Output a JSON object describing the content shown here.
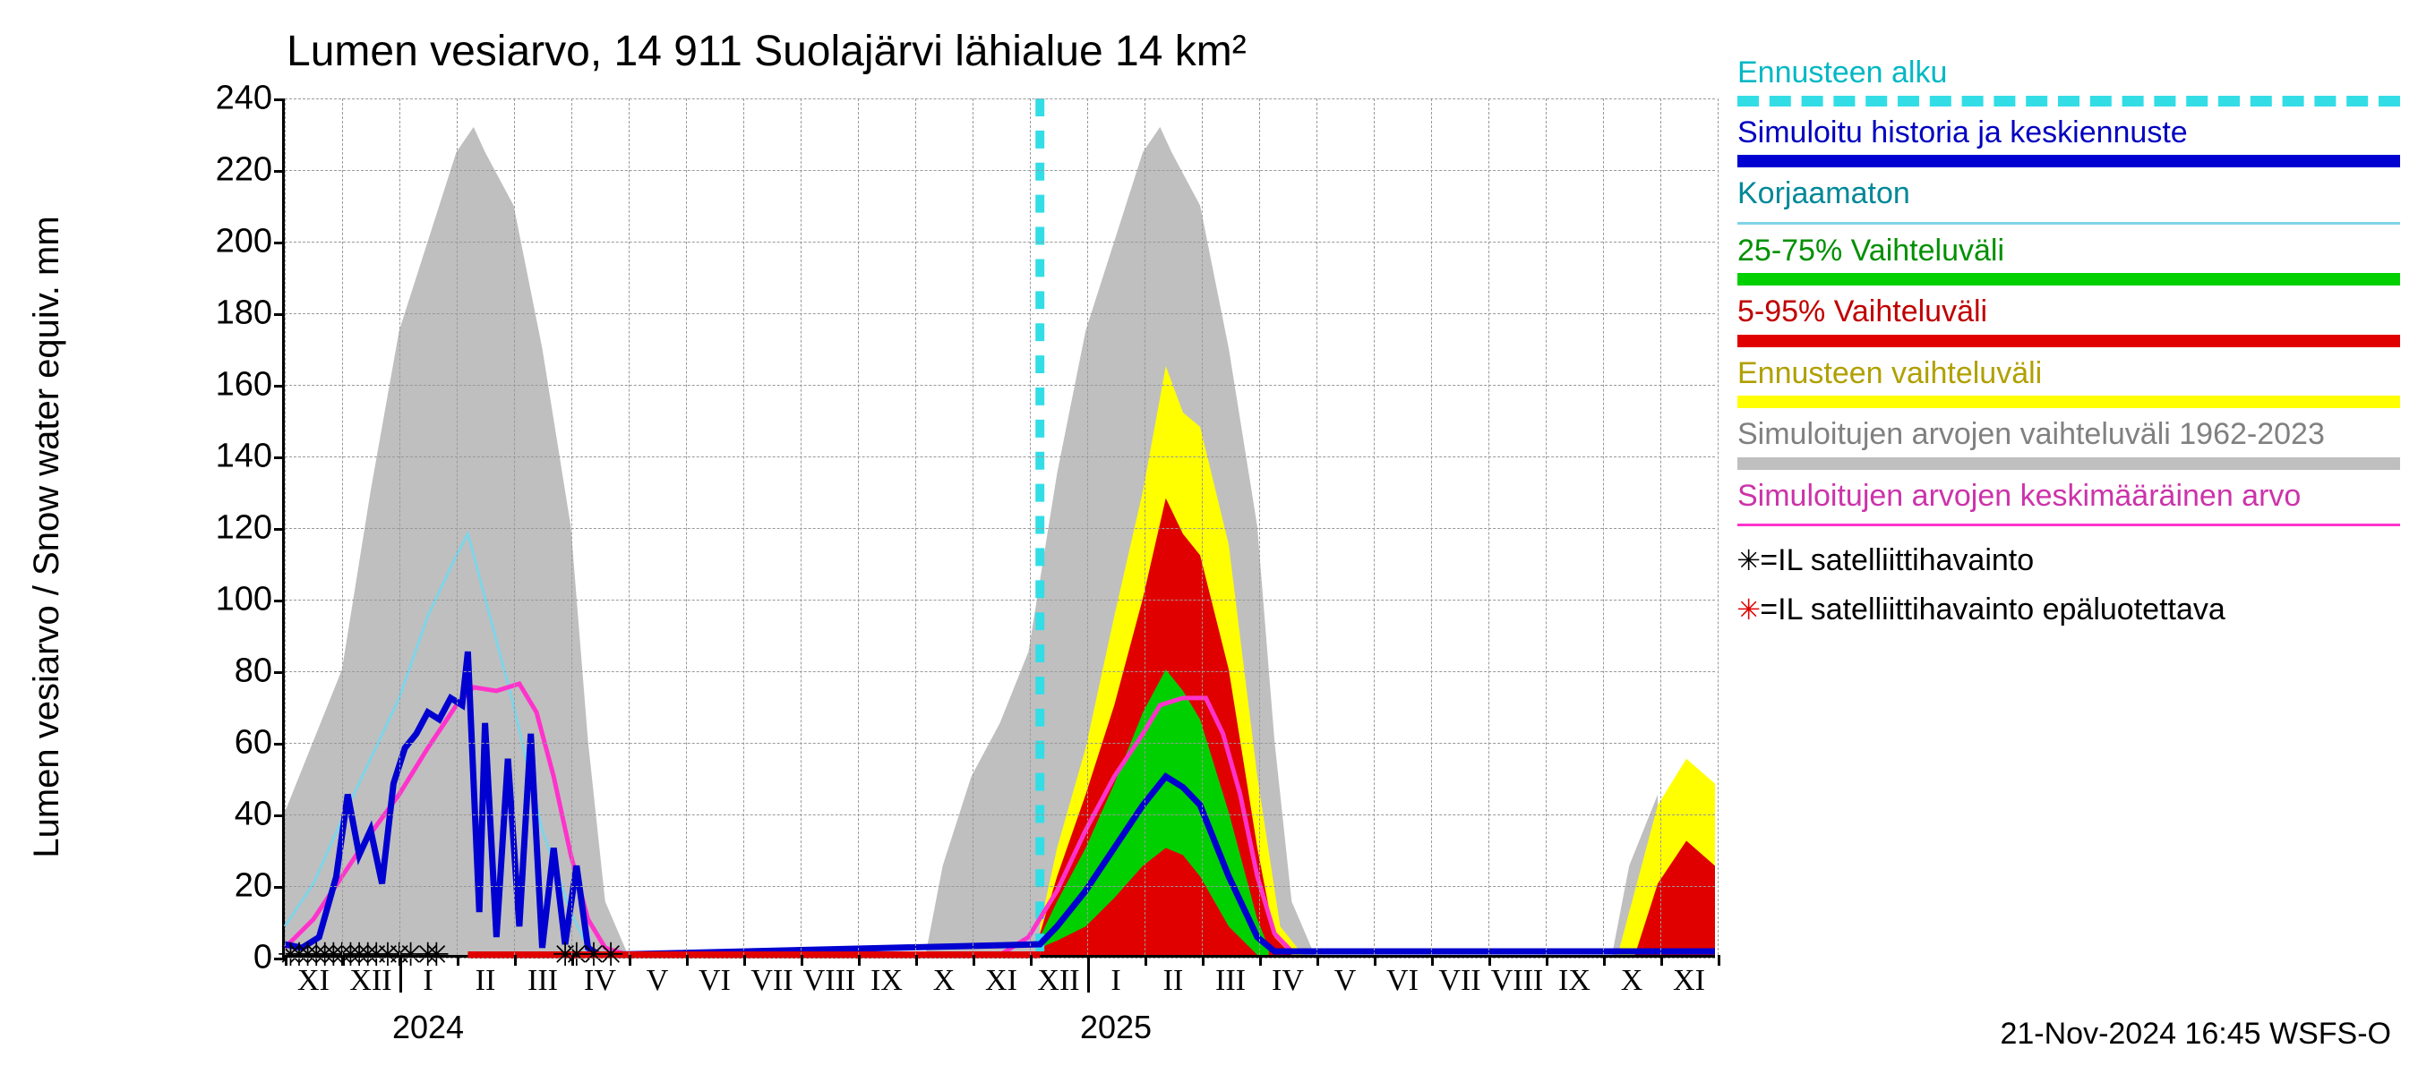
{
  "title": "Lumen vesiarvo, 14 911 Suolajärvi lähialue 14 km²",
  "y_axis_label": "Lumen vesiarvo / Snow water equiv.    mm",
  "timestamp": "21-Nov-2024 16:45 WSFS-O",
  "plot": {
    "ylim": [
      0,
      240
    ],
    "ytick_step": 20,
    "yticks": [
      0,
      20,
      40,
      60,
      80,
      100,
      120,
      140,
      160,
      180,
      200,
      220,
      240
    ],
    "background_color": "#ffffff",
    "grid_color": "#999999",
    "x_range_months": 25,
    "x_labels": [
      "XI",
      "XII",
      "I",
      "II",
      "III",
      "IV",
      "V",
      "VI",
      "VII",
      "VIII",
      "IX",
      "X",
      "XI",
      "XII",
      "I",
      "II",
      "III",
      "IV",
      "V",
      "VI",
      "VII",
      "VIII",
      "IX",
      "X",
      "XI"
    ],
    "year_labels": [
      {
        "text": "2024",
        "month_index": 2
      },
      {
        "text": "2025",
        "month_index": 14
      }
    ]
  },
  "legend": {
    "items": [
      {
        "label": "Ennusteen alku",
        "color": "#33dde6",
        "style": "dashed",
        "text_color": "#00b8c4"
      },
      {
        "label": "Simuloitu historia ja keskiennuste",
        "color": "#0000d0",
        "style": "thick",
        "text_color": "#0000c0"
      },
      {
        "label": "Korjaamaton",
        "color": "#7fd4e8",
        "style": "thin",
        "text_color": "#008898"
      },
      {
        "label": "25-75% Vaihteluväli",
        "color": "#00d000",
        "style": "thick",
        "text_color": "#009000"
      },
      {
        "label": "5-95% Vaihteluväli",
        "color": "#e00000",
        "style": "thick",
        "text_color": "#c00000"
      },
      {
        "label": "Ennusteen vaihteluväli",
        "color": "#ffff00",
        "style": "thick",
        "text_color": "#b0a000"
      },
      {
        "label": "Simuloitujen arvojen vaihteluväli 1962-2023",
        "color": "#bfbfbf",
        "style": "thick",
        "text_color": "#808080"
      },
      {
        "label": "Simuloitujen arvojen keskimääräinen arvo",
        "color": "#ff33cc",
        "style": "thin",
        "text_color": "#cc33aa"
      }
    ],
    "markers": [
      {
        "symbol": "✳",
        "color": "#000000",
        "label": "=IL satelliittihavainto"
      },
      {
        "symbol": "✳",
        "color": "#e00000",
        "label": "=IL satelliittihavainto epäluotettava"
      }
    ]
  },
  "colors": {
    "historical_band": "#bfbfbf",
    "yellow_band": "#ffff00",
    "red_band": "#e00000",
    "green_band": "#00d000",
    "blue_line": "#0000d0",
    "cyan_line": "#7fd4e8",
    "magenta_line": "#ff33cc",
    "forecast_start": "#33dde6",
    "marker_black": "#000000",
    "marker_red": "#e00000"
  },
  "forecast_start_month_index": 13.2,
  "series": {
    "historical_band": {
      "comment": "Grey band 1962-2023, month_index -> [lo, hi] in mm",
      "points": [
        [
          0,
          0,
          40
        ],
        [
          0.5,
          0,
          60
        ],
        [
          1,
          0,
          80
        ],
        [
          1.5,
          0,
          130
        ],
        [
          2,
          0,
          175
        ],
        [
          2.5,
          0,
          200
        ],
        [
          3,
          0,
          225
        ],
        [
          3.3,
          0,
          232
        ],
        [
          3.5,
          0,
          225
        ],
        [
          4,
          0,
          210
        ],
        [
          4.5,
          0,
          170
        ],
        [
          5,
          0,
          120
        ],
        [
          5.3,
          0,
          60
        ],
        [
          5.6,
          0,
          15
        ],
        [
          6,
          0,
          0
        ],
        [
          11.2,
          0,
          0
        ],
        [
          11.5,
          0,
          25
        ],
        [
          12,
          0,
          50
        ],
        [
          12.5,
          0,
          65
        ],
        [
          13,
          0,
          85
        ],
        [
          13.5,
          0,
          135
        ],
        [
          14,
          0,
          175
        ],
        [
          14.5,
          0,
          200
        ],
        [
          15,
          0,
          225
        ],
        [
          15.3,
          0,
          232
        ],
        [
          15.5,
          0,
          225
        ],
        [
          16,
          0,
          210
        ],
        [
          16.5,
          0,
          170
        ],
        [
          17,
          0,
          120
        ],
        [
          17.3,
          0,
          60
        ],
        [
          17.6,
          0,
          15
        ],
        [
          18,
          0,
          0
        ],
        [
          23.2,
          0,
          0
        ],
        [
          23.5,
          0,
          25
        ],
        [
          24,
          0,
          45
        ]
      ]
    },
    "yellow_band": {
      "points": [
        [
          13.2,
          0,
          8
        ],
        [
          13.5,
          0,
          30
        ],
        [
          14,
          0,
          58
        ],
        [
          14.5,
          0,
          95
        ],
        [
          15,
          0,
          130
        ],
        [
          15.4,
          0,
          165
        ],
        [
          15.7,
          0,
          152
        ],
        [
          16,
          0,
          148
        ],
        [
          16.5,
          0,
          115
        ],
        [
          17,
          0,
          50
        ],
        [
          17.4,
          0,
          8
        ],
        [
          17.8,
          0,
          0
        ],
        [
          23.3,
          0,
          0
        ],
        [
          23.6,
          0,
          18
        ],
        [
          24,
          0,
          42
        ],
        [
          24.5,
          0,
          55
        ],
        [
          25,
          0,
          48
        ]
      ]
    },
    "red_band": {
      "points": [
        [
          13.2,
          0,
          6
        ],
        [
          13.5,
          0,
          22
        ],
        [
          14,
          0,
          45
        ],
        [
          14.5,
          0,
          70
        ],
        [
          15,
          0,
          100
        ],
        [
          15.4,
          0,
          128
        ],
        [
          15.7,
          0,
          118
        ],
        [
          16,
          0,
          112
        ],
        [
          16.5,
          0,
          80
        ],
        [
          17,
          0,
          30
        ],
        [
          17.3,
          0,
          5
        ],
        [
          17.6,
          0,
          0
        ],
        [
          23.6,
          0,
          0
        ],
        [
          24,
          0,
          20
        ],
        [
          24.5,
          0,
          32
        ],
        [
          25,
          0,
          25
        ]
      ]
    },
    "green_band": {
      "points": [
        [
          13.2,
          2,
          5
        ],
        [
          13.5,
          4,
          15
        ],
        [
          14,
          8,
          30
        ],
        [
          14.5,
          16,
          48
        ],
        [
          15,
          25,
          68
        ],
        [
          15.4,
          30,
          80
        ],
        [
          15.7,
          28,
          74
        ],
        [
          16,
          22,
          66
        ],
        [
          16.5,
          8,
          40
        ],
        [
          17,
          0,
          10
        ],
        [
          17.2,
          0,
          2
        ]
      ]
    },
    "blue_line": {
      "points": [
        [
          0,
          3
        ],
        [
          0.3,
          2
        ],
        [
          0.6,
          5
        ],
        [
          0.9,
          22
        ],
        [
          1.1,
          45
        ],
        [
          1.3,
          28
        ],
        [
          1.5,
          35
        ],
        [
          1.7,
          20
        ],
        [
          1.9,
          48
        ],
        [
          2.1,
          58
        ],
        [
          2.3,
          62
        ],
        [
          2.5,
          68
        ],
        [
          2.7,
          66
        ],
        [
          2.9,
          72
        ],
        [
          3.1,
          70
        ],
        [
          3.2,
          85
        ],
        [
          3.4,
          12
        ],
        [
          3.5,
          65
        ],
        [
          3.7,
          5
        ],
        [
          3.9,
          55
        ],
        [
          4.1,
          8
        ],
        [
          4.3,
          62
        ],
        [
          4.5,
          2
        ],
        [
          4.7,
          30
        ],
        [
          4.9,
          3
        ],
        [
          5.1,
          25
        ],
        [
          5.3,
          2
        ],
        [
          5.5,
          0
        ],
        [
          13.2,
          3
        ],
        [
          13.5,
          8
        ],
        [
          14,
          18
        ],
        [
          14.5,
          30
        ],
        [
          15,
          42
        ],
        [
          15.4,
          50
        ],
        [
          15.7,
          47
        ],
        [
          16,
          42
        ],
        [
          16.5,
          22
        ],
        [
          17,
          5
        ],
        [
          17.3,
          1
        ],
        [
          18,
          1
        ],
        [
          20,
          1
        ],
        [
          23,
          1
        ],
        [
          25,
          1
        ]
      ]
    },
    "cyan_line": {
      "points": [
        [
          0,
          8
        ],
        [
          0.5,
          20
        ],
        [
          1,
          38
        ],
        [
          1.5,
          55
        ],
        [
          2,
          72
        ],
        [
          2.5,
          95
        ],
        [
          3,
          112
        ],
        [
          3.2,
          118
        ],
        [
          3.5,
          100
        ],
        [
          4,
          70
        ],
        [
          4.5,
          35
        ],
        [
          5,
          12
        ],
        [
          5.3,
          2
        ],
        [
          5.5,
          0
        ]
      ]
    },
    "magenta_line": {
      "points": [
        [
          0,
          2
        ],
        [
          0.5,
          10
        ],
        [
          1,
          22
        ],
        [
          1.5,
          34
        ],
        [
          2,
          45
        ],
        [
          2.5,
          58
        ],
        [
          3,
          70
        ],
        [
          3.3,
          75
        ],
        [
          3.7,
          74
        ],
        [
          4.1,
          76
        ],
        [
          4.4,
          68
        ],
        [
          4.7,
          50
        ],
        [
          5,
          28
        ],
        [
          5.3,
          10
        ],
        [
          5.6,
          2
        ],
        [
          6,
          0
        ],
        [
          12.5,
          0
        ],
        [
          13,
          5
        ],
        [
          13.5,
          18
        ],
        [
          14,
          35
        ],
        [
          14.5,
          50
        ],
        [
          15,
          62
        ],
        [
          15.3,
          70
        ],
        [
          15.7,
          72
        ],
        [
          16.1,
          72
        ],
        [
          16.4,
          62
        ],
        [
          16.7,
          45
        ],
        [
          17,
          22
        ],
        [
          17.3,
          6
        ],
        [
          17.6,
          1
        ],
        [
          18,
          1
        ],
        [
          20,
          1
        ],
        [
          23,
          1
        ],
        [
          25,
          1
        ]
      ]
    },
    "red_baseline": {
      "points": [
        [
          3.2,
          0
        ],
        [
          13.2,
          0
        ]
      ]
    },
    "markers_black": {
      "x": [
        0.1,
        0.25,
        0.4,
        0.55,
        0.7,
        0.85,
        1.0,
        1.15,
        1.3,
        1.45,
        1.6,
        1.8,
        2.0,
        2.2,
        2.5,
        2.65,
        4.9,
        5.1,
        5.4,
        5.7
      ]
    }
  }
}
